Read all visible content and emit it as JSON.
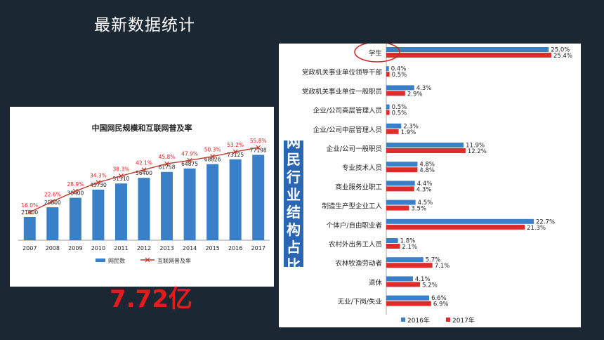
{
  "slide": {
    "title": "最新数据统计",
    "big_number": "7.72亿",
    "side_label": [
      "网",
      "民",
      "行",
      "业",
      "结",
      "构",
      "占",
      "比"
    ]
  },
  "colors": {
    "background": "#1b2733",
    "bar_blue": "#3a80c9",
    "line_red": "#c0392b",
    "bar_red": "#e02b2b",
    "highlight_circle": "#d61f1f"
  },
  "chart_data": [
    {
      "type": "bar",
      "title": "中国网民规模和互联网普及率",
      "categories": [
        "2007",
        "2008",
        "2009",
        "2010",
        "2011",
        "2012",
        "2013",
        "2014",
        "2015",
        "2016",
        "2017"
      ],
      "series": [
        {
          "name": "网民数",
          "type": "bar",
          "values": [
            21000,
            29800,
            38400,
            45730,
            51310,
            56400,
            61758,
            64875,
            68826,
            73125,
            77198
          ]
        },
        {
          "name": "互联网普及率",
          "type": "line",
          "values": [
            16.0,
            22.6,
            28.9,
            34.3,
            38.3,
            42.1,
            45.8,
            47.9,
            50.3,
            53.2,
            55.8
          ],
          "labels": [
            "16.0%",
            "22.6%",
            "28.9%",
            "34.3%",
            "38.3%",
            "42.1%",
            "45.8%",
            "47.9%",
            "50.3%",
            "53.2%",
            "55.8%"
          ]
        }
      ],
      "bar_labels": [
        "21000",
        "29800",
        "38400",
        "45730",
        "51310",
        "56400",
        "61758",
        "64875",
        "68826",
        "73125",
        "77198"
      ],
      "legend": [
        "网民数",
        "互联网普及率"
      ],
      "legend_position": "bottom",
      "grid": false
    },
    {
      "type": "bar",
      "orientation": "horizontal",
      "categories": [
        "学生",
        "党政机关事业单位领导干部",
        "党政机关事业单位一般职员",
        "企业/公司高层管理人员",
        "企业/公司中层管理人员",
        "企业/公司一般职员",
        "专业技术人员",
        "商业服务业职工",
        "制造生产型企业工人",
        "个体户/自由职业者",
        "农村外出务工人员",
        "农林牧渔劳动者",
        "退休",
        "无业/下岗/失业"
      ],
      "series": [
        {
          "name": "2016年",
          "values": [
            25.0,
            0.4,
            4.3,
            0.5,
            2.3,
            11.9,
            4.8,
            4.4,
            4.5,
            22.7,
            1.8,
            5.7,
            4.1,
            6.6
          ],
          "labels": [
            "25.0%",
            "0.4%",
            "4.3%",
            "0.5%",
            "2.3%",
            "11.9%",
            "4.8%",
            "4.4%",
            "4.5%",
            "22.7%",
            "1.8%",
            "5.7%",
            "4.1%",
            "6.6%"
          ]
        },
        {
          "name": "2017年",
          "values": [
            25.4,
            0.5,
            2.9,
            0.5,
            1.9,
            12.2,
            4.8,
            4.3,
            3.5,
            21.3,
            2.1,
            7.1,
            5.2,
            6.9
          ],
          "labels": [
            "25.4%",
            "0.5%",
            "2.9%",
            "0.5%",
            "1.9%",
            "12.2%",
            "4.8%",
            "4.3%",
            "3.5%",
            "21.3%",
            "2.1%",
            "7.1%",
            "5.2%",
            "6.9%"
          ]
        }
      ],
      "legend": [
        "2016年",
        "2017年"
      ],
      "legend_position": "bottom",
      "highlighted_category": "学生",
      "grid": false
    }
  ]
}
